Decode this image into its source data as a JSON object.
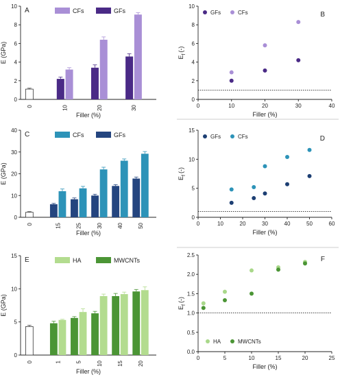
{
  "figure": {
    "panels": [
      "A",
      "B",
      "C",
      "D",
      "E",
      "F"
    ]
  },
  "chart_data": [
    {
      "id": "A",
      "type": "bar",
      "xlabel": "Filler (%)",
      "ylabel": "E (GPa)",
      "ylim": [
        0,
        10
      ],
      "yticks": [
        0,
        2,
        4,
        6,
        8,
        10
      ],
      "categories": [
        "0",
        "10",
        "20",
        "30"
      ],
      "control": {
        "value": 1.1,
        "err": 0.1
      },
      "series": [
        {
          "name": "GFs",
          "color": "#4a2a86",
          "values": [
            null,
            2.2,
            3.4,
            4.6
          ],
          "err": [
            null,
            0.2,
            0.3,
            0.3
          ]
        },
        {
          "name": "CFs",
          "color": "#a98fd6",
          "values": [
            null,
            3.2,
            6.4,
            9.1
          ],
          "err": [
            null,
            0.2,
            0.3,
            0.2
          ]
        }
      ],
      "legend": [
        "CFs",
        "GFs"
      ],
      "legend_position": "top"
    },
    {
      "id": "B",
      "type": "scatter",
      "xlabel": "Filler (%)",
      "ylabel": "E",
      "ylabel_sub": "f",
      "ylabel_unit": "(-)",
      "xlim": [
        0,
        40
      ],
      "xticks": [
        0,
        10,
        20,
        30,
        40
      ],
      "ylim": [
        0,
        10
      ],
      "yticks": [
        0,
        2,
        4,
        6,
        8,
        10
      ],
      "reference_line": 1,
      "series": [
        {
          "name": "GFs",
          "color": "#4a2a86",
          "x": [
            10,
            20,
            30
          ],
          "y": [
            2.0,
            3.1,
            4.2
          ]
        },
        {
          "name": "CFs",
          "color": "#a98fd6",
          "x": [
            10,
            20,
            30
          ],
          "y": [
            2.9,
            5.8,
            8.3
          ]
        }
      ],
      "legend": [
        "GFs",
        "CFs"
      ],
      "legend_position": "top-left"
    },
    {
      "id": "C",
      "type": "bar",
      "xlabel": "Filler (%)",
      "ylabel": "E (GPa)",
      "ylim": [
        0,
        40
      ],
      "yticks": [
        0,
        10,
        20,
        30,
        40
      ],
      "categories": [
        "0",
        "15",
        "25",
        "30",
        "40",
        "50"
      ],
      "control": {
        "value": 2.3,
        "err": 0.3
      },
      "series": [
        {
          "name": "GFs",
          "color": "#24457f",
          "values": [
            null,
            6.0,
            8.3,
            10.0,
            14.4,
            17.8
          ],
          "err": [
            null,
            0.4,
            0.6,
            0.6,
            0.6,
            0.7
          ]
        },
        {
          "name": "CFs",
          "color": "#2d93b8",
          "values": [
            null,
            12.0,
            13.3,
            22.0,
            26.0,
            29.2
          ],
          "err": [
            null,
            1.0,
            0.9,
            1.0,
            0.8,
            1.0
          ]
        }
      ],
      "legend": [
        "CFs",
        "GFs"
      ],
      "legend_position": "top"
    },
    {
      "id": "D",
      "type": "scatter",
      "xlabel": "Filler (%)",
      "ylabel": "E",
      "ylabel_sub": "f",
      "ylabel_unit": "(-)",
      "xlim": [
        0,
        60
      ],
      "xticks": [
        0,
        10,
        20,
        30,
        40,
        50,
        60
      ],
      "ylim": [
        0,
        15
      ],
      "yticks": [
        0,
        5,
        10,
        15
      ],
      "reference_line": 1,
      "series": [
        {
          "name": "GFs",
          "color": "#1d3f73",
          "x": [
            15,
            25,
            30,
            40,
            50
          ],
          "y": [
            2.5,
            3.3,
            4.1,
            5.7,
            7.1
          ]
        },
        {
          "name": "CFs",
          "color": "#2d93b8",
          "x": [
            15,
            25,
            30,
            40,
            50
          ],
          "y": [
            4.8,
            5.2,
            8.8,
            10.4,
            11.6
          ]
        }
      ],
      "legend": [
        "GFs",
        "CFs"
      ],
      "legend_position": "top-left"
    },
    {
      "id": "E",
      "type": "bar",
      "xlabel": "Filler (%)",
      "ylabel": "E (GPa)",
      "ylim": [
        0,
        15
      ],
      "yticks": [
        0,
        5,
        10,
        15
      ],
      "categories": [
        "0",
        "1",
        "5",
        "10",
        "15",
        "20"
      ],
      "control": {
        "value": 4.3,
        "err": 0.2
      },
      "series": [
        {
          "name": "MWCNTs",
          "color": "#4b9535",
          "values": [
            null,
            4.8,
            5.6,
            6.3,
            8.9,
            9.6
          ],
          "err": [
            null,
            0.3,
            0.2,
            0.3,
            0.4,
            0.3
          ]
        },
        {
          "name": "HA",
          "color": "#b3dc8f",
          "values": [
            null,
            5.3,
            6.5,
            8.9,
            9.2,
            9.8
          ],
          "err": [
            null,
            0.1,
            0.5,
            0.3,
            0.3,
            0.5
          ]
        }
      ],
      "legend": [
        "HA",
        "MWCNTs"
      ],
      "legend_position": "top"
    },
    {
      "id": "F",
      "type": "scatter",
      "xlabel": "Filler (%)",
      "ylabel": "E",
      "ylabel_sub": "f",
      "ylabel_unit": "(-)",
      "xlim": [
        0,
        25
      ],
      "xticks": [
        0,
        5,
        10,
        15,
        20,
        25
      ],
      "ylim": [
        0.0,
        2.5
      ],
      "yticks": [
        "0.0",
        "0.5",
        "1.0",
        "1.5",
        "2.0",
        "2.5"
      ],
      "reference_line": 1,
      "series": [
        {
          "name": "HA",
          "color": "#a9d88a",
          "x": [
            1,
            5,
            10,
            15,
            20
          ],
          "y": [
            1.25,
            1.55,
            2.1,
            2.18,
            2.32
          ]
        },
        {
          "name": "MWCNTs",
          "color": "#4b9535",
          "x": [
            1,
            5,
            10,
            15,
            20
          ],
          "y": [
            1.13,
            1.33,
            1.5,
            2.12,
            2.28
          ]
        }
      ],
      "legend": [
        "HA",
        "MWCNTs"
      ],
      "legend_position": "bottom-left"
    }
  ]
}
